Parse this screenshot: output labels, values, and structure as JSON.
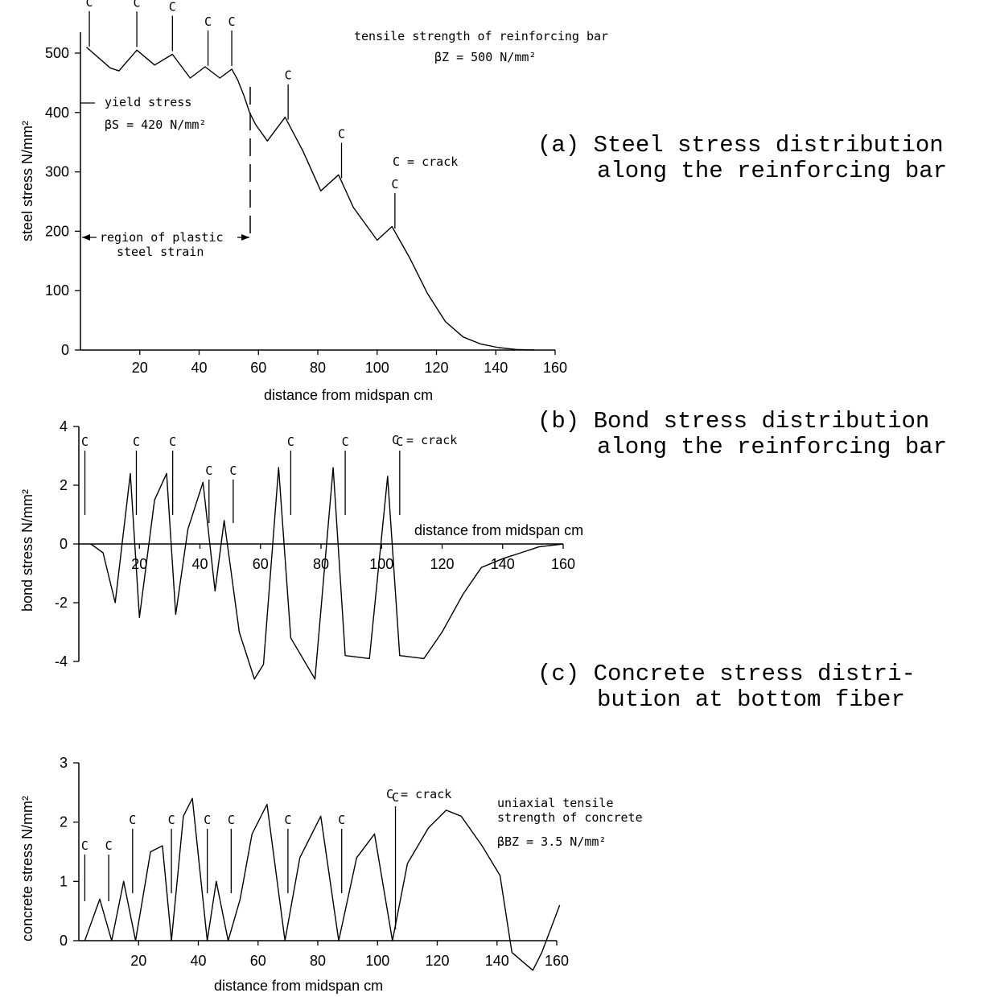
{
  "captions": {
    "a": [
      "(a) Steel stress distribution",
      "along the reinforcing bar"
    ],
    "b": [
      "(b) Bond stress distribution",
      "along the reinforcing bar"
    ],
    "c": [
      "(c) Concrete stress distri-",
      "bution at bottom fiber"
    ]
  },
  "crack_label": "C",
  "chart_data": [
    {
      "type": "line",
      "id": "steel",
      "xlabel": "distance from midspan  cm",
      "ylabel": "steel stress  N/mm²",
      "xlim": [
        0,
        160
      ],
      "ylim": [
        0,
        500
      ],
      "xticks": [
        20,
        40,
        60,
        80,
        100,
        120,
        140,
        160
      ],
      "yticks": [
        0,
        100,
        200,
        300,
        400,
        500
      ],
      "x": [
        2,
        10,
        13,
        19,
        25,
        31,
        37,
        42,
        47,
        51,
        53,
        55,
        57,
        59,
        63,
        69,
        75,
        81,
        87,
        92,
        100,
        105,
        111,
        117,
        123,
        129,
        135,
        141,
        147,
        153
      ],
      "y": [
        510,
        475,
        470,
        505,
        480,
        498,
        458,
        477,
        458,
        473,
        455,
        430,
        400,
        380,
        352,
        392,
        335,
        268,
        295,
        240,
        185,
        208,
        155,
        95,
        48,
        22,
        10,
        4,
        1,
        0
      ],
      "cracks": [
        3,
        19,
        31,
        43,
        51,
        70,
        88,
        106
      ],
      "annotations": {
        "tensile_strength": [
          "tensile strength of reinforcing bar",
          "βZ = 500 N/mm²"
        ],
        "yield_stress": [
          "yield stress",
          "βS = 420 N/mm²"
        ],
        "plastic_region": [
          "region of plastic",
          "steel strain"
        ],
        "crack_legend": "C = crack"
      }
    },
    {
      "type": "line",
      "id": "bond",
      "xlabel": "distance from midspan  cm",
      "ylabel": "bond stress  N/mm²",
      "xlim": [
        0,
        160
      ],
      "ylim": [
        -4,
        4
      ],
      "xticks": [
        20,
        40,
        60,
        80,
        100,
        120,
        140,
        160
      ],
      "yticks": [
        -4,
        -2,
        0,
        2,
        4
      ],
      "x": [
        4,
        8,
        12,
        17,
        20,
        25,
        29,
        32,
        36,
        41,
        45,
        48,
        53,
        58,
        61,
        66,
        70,
        78,
        84,
        88,
        96,
        102,
        106,
        114,
        120,
        127,
        133,
        140,
        146,
        152,
        160
      ],
      "y": [
        0,
        -0.3,
        -2,
        2.4,
        -2.5,
        1.5,
        2.4,
        -2.4,
        0.5,
        2.1,
        -1.6,
        0.8,
        -3,
        -4.6,
        -4.1,
        2.6,
        -3.2,
        -4.6,
        2.6,
        -3.8,
        -3.9,
        2.3,
        -3.8,
        -3.9,
        -3,
        -1.7,
        -0.8,
        -0.5,
        -0.3,
        -0.1,
        0
      ],
      "cracks": [
        2,
        19,
        31,
        43,
        51,
        70,
        88,
        106
      ],
      "annotations": {
        "crack_legend": "C = crack"
      }
    },
    {
      "type": "line",
      "id": "concrete",
      "xlabel": "distance from midspan  cm",
      "ylabel": "concrete stress  N/mm²",
      "xlim": [
        0,
        160
      ],
      "ylim": [
        0,
        3
      ],
      "xticks": [
        20,
        40,
        60,
        80,
        100,
        120,
        140,
        160
      ],
      "yticks": [
        0,
        1,
        2,
        3
      ],
      "x": [
        2,
        7,
        11,
        15,
        19,
        24,
        28,
        31,
        35,
        38,
        43,
        46,
        50,
        54,
        58,
        63,
        69,
        74,
        81,
        87,
        93,
        99,
        105,
        110,
        117,
        123,
        128,
        135,
        141,
        145,
        152,
        155,
        161
      ],
      "y": [
        0,
        0.7,
        0,
        1.0,
        0,
        1.5,
        1.6,
        0,
        2.1,
        2.4,
        0,
        1.0,
        0,
        0.7,
        1.8,
        2.3,
        0,
        1.4,
        2.1,
        0,
        1.4,
        1.8,
        0,
        1.3,
        1.9,
        2.2,
        2.1,
        1.6,
        1.1,
        -0.2,
        -0.5,
        -0.2,
        0.6
      ],
      "cracks": [
        2,
        10,
        18,
        31,
        43,
        51,
        70,
        88,
        106
      ],
      "annotations": {
        "tensile_strength": [
          "uniaxial tensile",
          "strength of concrete",
          "βBZ = 3.5 N/mm²"
        ],
        "crack_legend": "C = crack"
      }
    }
  ]
}
